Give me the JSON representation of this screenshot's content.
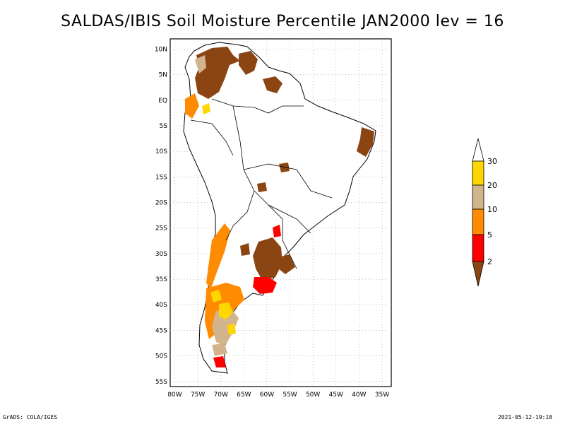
{
  "title": "SALDAS/IBIS Soil Moisture Percentile JAN2000 lev = 16",
  "map": {
    "lon_ticks": [
      "80W",
      "75W",
      "70W",
      "65W",
      "60W",
      "55W",
      "50W",
      "45W",
      "40W",
      "35W"
    ],
    "lat_ticks": [
      "10N",
      "5N",
      "EQ",
      "5S",
      "10S",
      "15S",
      "20S",
      "25S",
      "30S",
      "35S",
      "40S",
      "45S",
      "50S",
      "55S"
    ],
    "lon_range": [
      -81,
      -33
    ],
    "lat_range": [
      -56,
      12
    ],
    "grid": true
  },
  "legend": {
    "labels": [
      "30",
      "20",
      "10",
      "5",
      "2"
    ],
    "colors": {
      "above_30": "#ffffff",
      "20_30": "#ffd700",
      "10_20": "#d2b48c",
      "5_10": "#ff8c00",
      "2_5": "#ff0000",
      "below_2": "#8b4513"
    }
  },
  "footer": {
    "left": "GrADS: COLA/IGES",
    "right": "2021-05-12-19:18"
  }
}
